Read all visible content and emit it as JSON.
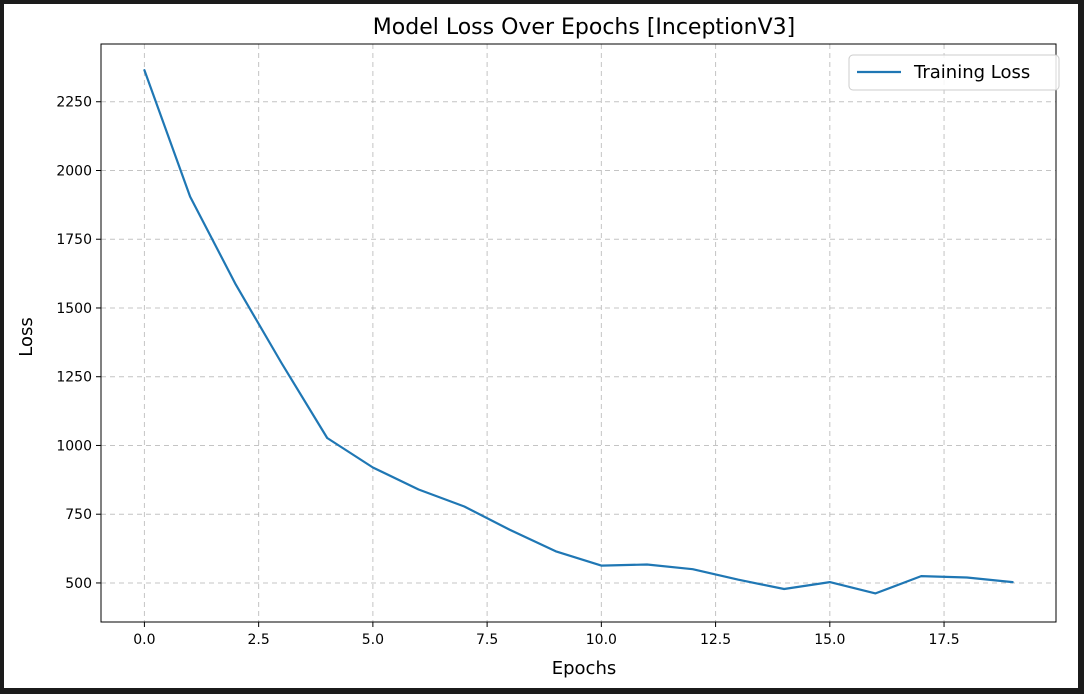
{
  "chart_data": {
    "type": "line",
    "title": "Model Loss Over Epochs [InceptionV3]",
    "xlabel": "Epochs",
    "ylabel": "Loss",
    "xlim": [
      -0.95,
      19.95
    ],
    "ylim": [
      358,
      2460
    ],
    "xticks": [
      0.0,
      2.5,
      5.0,
      7.5,
      10.0,
      12.5,
      15.0,
      17.5
    ],
    "xtick_labels": [
      "0.0",
      "2.5",
      "5.0",
      "7.5",
      "10.0",
      "12.5",
      "15.0",
      "17.5"
    ],
    "yticks": [
      500,
      750,
      1000,
      1250,
      1500,
      1750,
      2000,
      2250
    ],
    "ytick_labels": [
      "500",
      "750",
      "1000",
      "1250",
      "1500",
      "1750",
      "2000",
      "2250"
    ],
    "grid": true,
    "legend_position": "top-right",
    "series": [
      {
        "name": "Training Loss",
        "color": "#1f77b4",
        "x": [
          0,
          1,
          2,
          3,
          4,
          5,
          6,
          7,
          8,
          9,
          10,
          11,
          12,
          13,
          14,
          15,
          16,
          17,
          18,
          19
        ],
        "y": [
          2365,
          1905,
          1585,
          1300,
          1027,
          920,
          840,
          778,
          693,
          615,
          563,
          567,
          550,
          512,
          478,
          503,
          462,
          525,
          520,
          503
        ]
      }
    ]
  }
}
